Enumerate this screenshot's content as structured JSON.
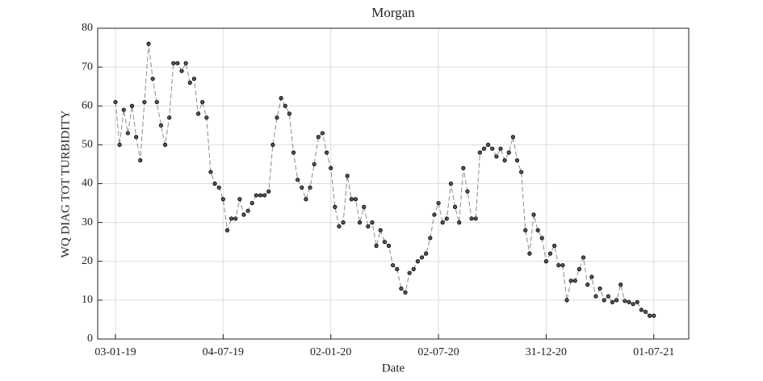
{
  "chart_data": {
    "type": "line",
    "title": "Morgan",
    "x_label": "Date",
    "y_label": "WQ DIAG TOT TURBIDITY",
    "x": [
      "2019-01-03",
      "2019-01-10",
      "2019-01-17",
      "2019-01-24",
      "2019-01-31",
      "2019-02-07",
      "2019-02-14",
      "2019-02-21",
      "2019-02-28",
      "2019-03-07",
      "2019-03-14",
      "2019-03-21",
      "2019-03-28",
      "2019-04-04",
      "2019-04-11",
      "2019-04-18",
      "2019-04-25",
      "2019-05-02",
      "2019-05-09",
      "2019-05-16",
      "2019-05-23",
      "2019-05-30",
      "2019-06-06",
      "2019-06-13",
      "2019-06-20",
      "2019-06-27",
      "2019-07-04",
      "2019-07-11",
      "2019-07-18",
      "2019-07-25",
      "2019-08-01",
      "2019-08-08",
      "2019-08-15",
      "2019-08-22",
      "2019-08-29",
      "2019-09-05",
      "2019-09-12",
      "2019-09-19",
      "2019-09-26",
      "2019-10-03",
      "2019-10-10",
      "2019-10-17",
      "2019-10-24",
      "2019-10-31",
      "2019-11-07",
      "2019-11-14",
      "2019-11-21",
      "2019-11-28",
      "2019-12-05",
      "2019-12-12",
      "2019-12-19",
      "2019-12-26",
      "2020-01-02",
      "2020-01-09",
      "2020-01-16",
      "2020-01-23",
      "2020-01-30",
      "2020-02-06",
      "2020-02-13",
      "2020-02-20",
      "2020-02-27",
      "2020-03-05",
      "2020-03-12",
      "2020-03-19",
      "2020-03-26",
      "2020-04-02",
      "2020-04-09",
      "2020-04-16",
      "2020-04-23",
      "2020-04-30",
      "2020-05-07",
      "2020-05-14",
      "2020-05-21",
      "2020-05-28",
      "2020-06-04",
      "2020-06-11",
      "2020-06-18",
      "2020-06-25",
      "2020-07-02",
      "2020-07-09",
      "2020-07-16",
      "2020-07-23",
      "2020-07-30",
      "2020-08-06",
      "2020-08-13",
      "2020-08-20",
      "2020-08-27",
      "2020-09-03",
      "2020-09-10",
      "2020-09-17",
      "2020-09-24",
      "2020-10-01",
      "2020-10-08",
      "2020-10-15",
      "2020-10-22",
      "2020-10-29",
      "2020-11-05",
      "2020-11-12",
      "2020-11-19",
      "2020-11-26",
      "2020-12-03",
      "2020-12-10",
      "2020-12-17",
      "2020-12-24",
      "2020-12-31",
      "2021-01-07",
      "2021-01-14",
      "2021-01-21",
      "2021-01-28",
      "2021-02-04",
      "2021-02-11",
      "2021-02-18",
      "2021-02-25",
      "2021-03-04",
      "2021-03-11",
      "2021-03-18",
      "2021-03-25",
      "2021-04-01",
      "2021-04-08",
      "2021-04-15",
      "2021-04-22",
      "2021-04-29",
      "2021-05-06",
      "2021-05-13",
      "2021-05-20",
      "2021-05-27",
      "2021-06-03",
      "2021-06-10",
      "2021-06-17",
      "2021-06-24",
      "2021-07-01"
    ],
    "values": [
      61,
      50,
      59,
      53,
      60,
      52,
      46,
      61,
      76,
      67,
      61,
      55,
      50,
      57,
      71,
      71,
      69,
      71,
      66,
      67,
      58,
      61,
      57,
      43,
      40,
      39,
      36,
      28,
      31,
      31,
      36,
      32,
      33,
      35,
      37,
      37,
      37,
      38,
      50,
      57,
      62,
      60,
      58,
      48,
      41,
      39,
      36,
      39,
      45,
      52,
      53,
      48,
      44,
      34,
      29,
      30,
      42,
      36,
      36,
      30,
      34,
      29,
      30,
      24,
      28,
      25,
      24,
      19,
      18,
      13,
      12,
      17,
      18,
      20,
      21,
      22,
      26,
      32,
      35,
      30,
      31,
      40,
      34,
      30,
      44,
      38,
      31,
      31,
      48,
      49,
      50,
      49,
      47,
      49,
      46,
      48,
      52,
      46,
      43,
      28,
      22,
      32,
      28,
      26,
      20,
      22,
      24,
      19,
      19,
      10,
      15,
      15,
      18,
      21,
      14,
      16,
      11,
      13,
      10,
      11,
      9.5,
      10,
      14,
      9.8,
      9.5,
      9,
      9.5,
      7.5,
      7,
      6,
      6
    ],
    "marker_color": "#000000",
    "line_color": "#8c8c8c",
    "line_dash": true,
    "grid": true,
    "xlim": [
      "2018-12-04",
      "2021-08-29"
    ],
    "xticks": [
      {
        "value": "2019-01-03",
        "label": "03-01-19"
      },
      {
        "value": "2019-07-04",
        "label": "04-07-19"
      },
      {
        "value": "2020-01-02",
        "label": "02-01-20"
      },
      {
        "value": "2020-07-02",
        "label": "02-07-20"
      },
      {
        "value": "2020-12-31",
        "label": "31-12-20"
      },
      {
        "value": "2021-07-01",
        "label": "01-07-21"
      }
    ],
    "ylim": [
      0,
      80
    ],
    "yticks": [
      0,
      10,
      20,
      30,
      40,
      50,
      60,
      70,
      80
    ]
  }
}
